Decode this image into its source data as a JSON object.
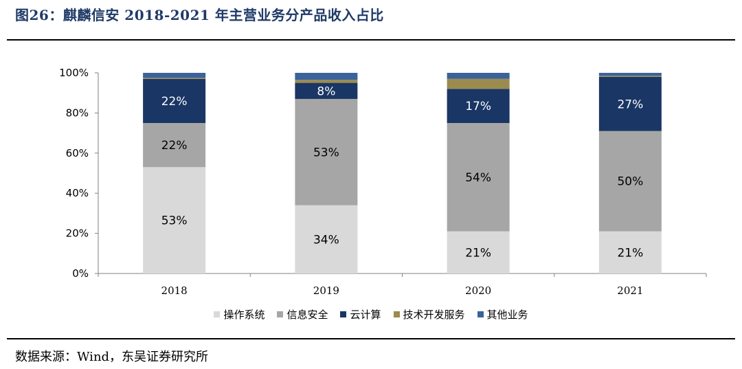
{
  "header": {
    "title": "图26：麒麟信安 2018-2021 年主营业务分产品收入占比"
  },
  "footer": {
    "source": "数据来源：Wind，东吴证券研究所"
  },
  "chart_data": {
    "type": "bar",
    "stacked": true,
    "categories": [
      "2018",
      "2019",
      "2020",
      "2021"
    ],
    "y_ticks": [
      "0%",
      "20%",
      "40%",
      "60%",
      "80%",
      "100%"
    ],
    "ylim": [
      0,
      100
    ],
    "grid": false,
    "legend_position": "bottom",
    "series": [
      {
        "name": "操作系统",
        "color": "#d9d9d9",
        "values": [
          53,
          34,
          21,
          21
        ],
        "labels": [
          "53%",
          "34%",
          "21%",
          "21%"
        ]
      },
      {
        "name": "信息安全",
        "color": "#a6a6a6",
        "values": [
          22,
          53,
          54,
          50
        ],
        "labels": [
          "22%",
          "53%",
          "54%",
          "50%"
        ]
      },
      {
        "name": "云计算",
        "color": "#1a3665",
        "values": [
          22,
          8,
          17,
          27
        ],
        "labels": [
          "22%",
          "8%",
          "17%",
          "27%"
        ]
      },
      {
        "name": "技术开发服务",
        "color": "#9c8b4f",
        "values": [
          0.5,
          1.5,
          5,
          0.5
        ],
        "labels": [
          "",
          "",
          "",
          ""
        ]
      },
      {
        "name": "其他业务",
        "color": "#3b6299",
        "values": [
          2.5,
          3.5,
          3,
          1.5
        ],
        "labels": [
          "",
          "",
          "",
          ""
        ]
      }
    ]
  }
}
